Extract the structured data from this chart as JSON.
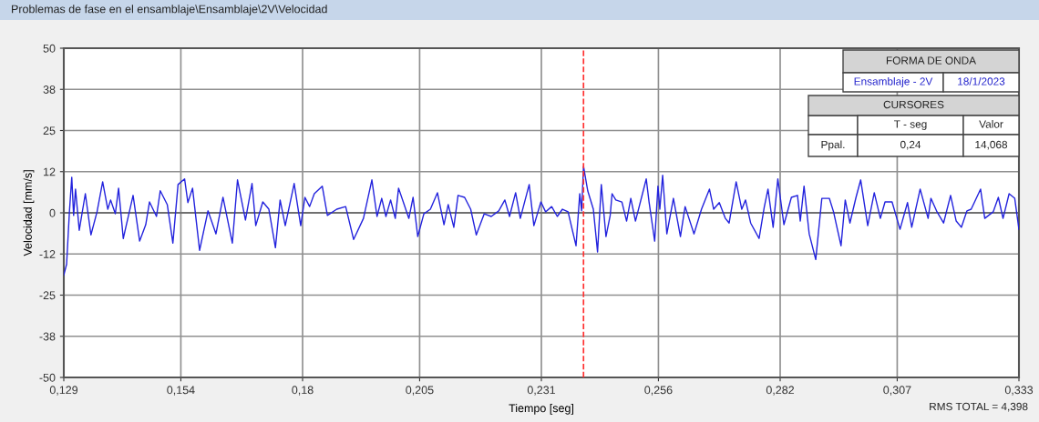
{
  "chart_data": {
    "type": "line",
    "title": "Problemas de fase en el ensamblaje\\Ensamblaje\\2V\\Velocidad",
    "xlabel": "Tiempo [seg]",
    "ylabel": "Velocidad [mm/s]",
    "x": [
      0.129,
      0.1296,
      0.1302,
      0.1307,
      0.1311,
      0.1315,
      0.1323,
      0.1336,
      0.1348,
      0.1361,
      0.1373,
      0.1384,
      0.139,
      0.14,
      0.1407,
      0.1417,
      0.1438,
      0.1452,
      0.1465,
      0.1473,
      0.1488,
      0.1496,
      0.1511,
      0.1523,
      0.1534,
      0.1548,
      0.1555,
      0.1565,
      0.158,
      0.1598,
      0.1615,
      0.163,
      0.165,
      0.1661,
      0.1678,
      0.1692,
      0.17,
      0.1715,
      0.1728,
      0.1742,
      0.1752,
      0.1763,
      0.1782,
      0.1796,
      0.1805,
      0.1815,
      0.1825,
      0.1842,
      0.1853,
      0.1873,
      0.1892,
      0.1909,
      0.193,
      0.1948,
      0.1959,
      0.1969,
      0.1978,
      0.1988,
      0.1998,
      0.2005,
      0.2015,
      0.2027,
      0.2036,
      0.2046,
      0.2059,
      0.2073,
      0.2088,
      0.2102,
      0.2111,
      0.2123,
      0.2132,
      0.2146,
      0.2159,
      0.2171,
      0.2188,
      0.2203,
      0.2219,
      0.2232,
      0.2242,
      0.2255,
      0.2265,
      0.2284,
      0.2294,
      0.2309,
      0.2319,
      0.2332,
      0.2344,
      0.2355,
      0.2367,
      0.2384,
      0.2392,
      0.2396,
      0.24,
      0.2409,
      0.2421,
      0.243,
      0.2438,
      0.2448,
      0.2457,
      0.2461,
      0.2469,
      0.2482,
      0.2492,
      0.2501,
      0.2511,
      0.2534,
      0.254,
      0.2552,
      0.2559,
      0.2563,
      0.2569,
      0.2578,
      0.2592,
      0.2607,
      0.2617,
      0.2636,
      0.2652,
      0.2669,
      0.2678,
      0.269,
      0.2703,
      0.2711,
      0.2726,
      0.2738,
      0.2746,
      0.2757,
      0.2775,
      0.2786,
      0.2794,
      0.2805,
      0.2815,
      0.2828,
      0.2844,
      0.2857,
      0.2863,
      0.2871,
      0.2882,
      0.2896,
      0.2909,
      0.2925,
      0.2934,
      0.295,
      0.2959,
      0.2969,
      0.2982,
      0.2992,
      0.3007,
      0.3021,
      0.3034,
      0.3044,
      0.3059,
      0.3076,
      0.3092,
      0.3101,
      0.3119,
      0.3136,
      0.3142,
      0.3155,
      0.3169,
      0.3184,
      0.3196,
      0.3207,
      0.3219,
      0.3228,
      0.3248,
      0.3257,
      0.3275,
      0.3286,
      0.3296,
      0.3309,
      0.3321,
      0.333
    ],
    "series": [
      {
        "color": "#2222dd",
        "values": [
          -18.9,
          -15.6,
          0.3,
          10.8,
          -0.8,
          7.2,
          -5.3,
          5.8,
          -6.7,
          0.3,
          9.4,
          1.1,
          3.9,
          -0.3,
          7.5,
          -7.8,
          5.3,
          -8.6,
          -3.6,
          3.3,
          -1.1,
          6.7,
          2.5,
          -9.2,
          8.6,
          10.3,
          3.1,
          7.5,
          -11.4,
          0.6,
          -6.4,
          4.7,
          -9.2,
          10.0,
          -2.2,
          8.9,
          -3.9,
          3.3,
          1.1,
          -10.6,
          3.9,
          -3.9,
          8.9,
          -3.9,
          4.7,
          1.9,
          5.8,
          8.1,
          -0.8,
          1.1,
          1.9,
          -8.1,
          -1.7,
          10.0,
          -1.1,
          4.4,
          -1.1,
          3.9,
          -1.7,
          7.5,
          3.3,
          -1.7,
          4.7,
          -7.2,
          -0.3,
          1.1,
          6.1,
          -3.6,
          2.5,
          -4.4,
          5.3,
          4.7,
          1.1,
          -6.7,
          -0.3,
          -1.1,
          0.6,
          3.9,
          -1.1,
          6.1,
          -1.7,
          8.6,
          -3.9,
          3.3,
          0.3,
          1.9,
          -1.1,
          1.1,
          0.3,
          -10.0,
          5.8,
          0.6,
          14.1,
          6.7,
          1.1,
          -11.9,
          8.6,
          -7.2,
          -0.8,
          5.8,
          3.9,
          3.3,
          -2.5,
          4.4,
          -2.5,
          10.3,
          3.3,
          -8.6,
          8.1,
          1.1,
          11.4,
          -6.4,
          4.4,
          -7.2,
          1.9,
          -6.4,
          1.1,
          7.2,
          1.1,
          3.1,
          -1.7,
          -3.1,
          9.4,
          1.1,
          3.9,
          -3.1,
          -7.8,
          1.7,
          7.2,
          -4.4,
          10.3,
          -3.6,
          4.7,
          5.3,
          -2.5,
          8.1,
          -6.4,
          -14.2,
          4.4,
          4.4,
          0.3,
          -10.0,
          3.9,
          -3.1,
          4.7,
          10.0,
          -3.9,
          6.1,
          -1.7,
          3.3,
          3.3,
          -5.0,
          3.1,
          -4.4,
          7.2,
          -1.7,
          4.4,
          0.3,
          -3.1,
          5.3,
          -2.5,
          -4.4,
          0.6,
          1.1,
          7.2,
          -1.7,
          0.3,
          4.7,
          -1.7,
          5.8,
          4.4,
          -5.0
        ]
      }
    ],
    "xlim": [
      0.129,
      0.333
    ],
    "xticks": [
      {
        "value": 0.129,
        "label": "0,129"
      },
      {
        "value": 0.154,
        "label": "0,154"
      },
      {
        "value": 0.18,
        "label": "0,18"
      },
      {
        "value": 0.205,
        "label": "0,205"
      },
      {
        "value": 0.231,
        "label": "0,231"
      },
      {
        "value": 0.256,
        "label": "0,256"
      },
      {
        "value": 0.282,
        "label": "0,282"
      },
      {
        "value": 0.307,
        "label": "0,307"
      },
      {
        "value": 0.333,
        "label": "0,333"
      }
    ],
    "ylim": [
      -50,
      50
    ],
    "yticks": [
      {
        "value": 50,
        "label": "50"
      },
      {
        "value": 37.5,
        "label": "38"
      },
      {
        "value": 25,
        "label": "25"
      },
      {
        "value": 12.5,
        "label": "12"
      },
      {
        "value": 0,
        "label": "0"
      },
      {
        "value": -12.5,
        "label": "-12"
      },
      {
        "value": -25,
        "label": "-25"
      },
      {
        "value": -37.5,
        "label": "-38"
      },
      {
        "value": -50,
        "label": "-50"
      }
    ],
    "grid": true,
    "line_style": "solid",
    "ref_lines": [
      {
        "axis": "x",
        "value": 0.24,
        "color": "#ff3030",
        "line_style": "dashed"
      }
    ],
    "annotations": [
      "FORMA DE ONDA",
      "Ensamblaje - 2V",
      "18/1/2023",
      "CURSORES",
      "T - seg",
      "Valor",
      "Ppal.",
      "0,24",
      "14,068",
      "RMS TOTAL = 4,398"
    ]
  }
}
